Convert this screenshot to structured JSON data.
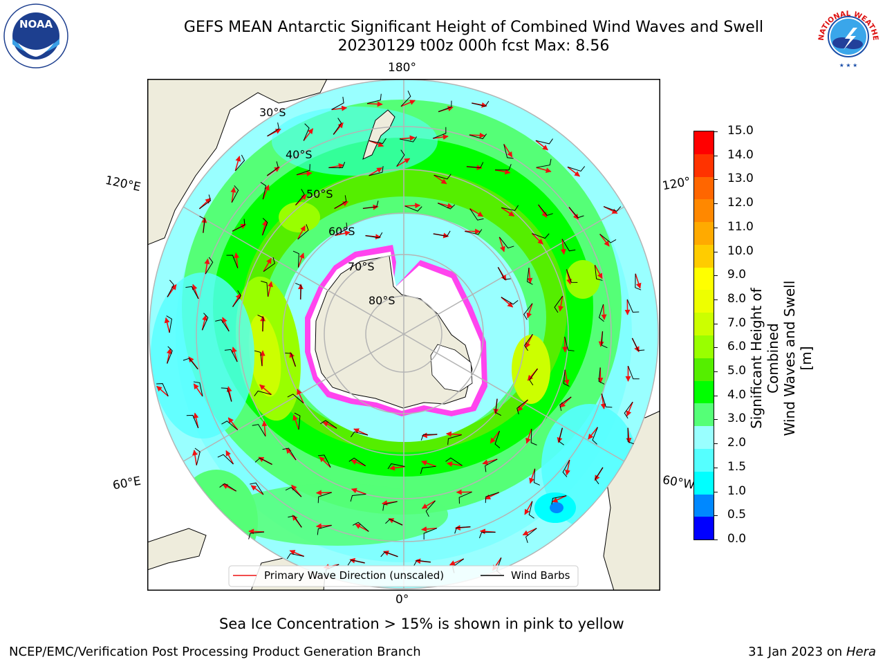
{
  "header": {
    "title_line1": "GEFS MEAN Antarctic Significant Height of Combined Wind Waves and Swell",
    "title_line2": "20230129 t00z 000h fcst   Max: 8.56"
  },
  "logos": {
    "noaa_text": "NOAA",
    "nws_text": "NATIONAL WEATHER SERVICE"
  },
  "map": {
    "longitude_labels": {
      "top": "180°",
      "bottom": "0°",
      "left_upper": "120°E",
      "left_lower": "60°E",
      "right_upper": "120°",
      "right_lower": "60°W"
    },
    "latitude_labels": [
      "30°S",
      "40°S",
      "50°S",
      "60°S",
      "70°S",
      "80°S"
    ],
    "legend": {
      "wave_label": "Primary Wave Direction (unscaled)",
      "barb_label": "Wind Barbs"
    },
    "colors": {
      "land": "#eeecdc",
      "ice": "#ff44ee",
      "wave_arrow": "#ee1111",
      "barb": "#000000",
      "grid": "#b4b4b4"
    }
  },
  "colorbar": {
    "label_line1": "Significant Height of Combined",
    "label_line2": "Wind Waves and Swell [m]",
    "ticks": [
      "15.0",
      "14.0",
      "13.0",
      "12.0",
      "11.0",
      "10.0",
      "9.0",
      "8.0",
      "7.0",
      "6.0",
      "5.0",
      "4.0",
      "3.0",
      "2.0",
      "1.5",
      "1.0",
      "0.5",
      "0.0"
    ],
    "colors_top_to_bottom": [
      "#ff0000",
      "#ff3300",
      "#ff6600",
      "#ff8800",
      "#ffaa00",
      "#ffcc00",
      "#ffff00",
      "#eeff00",
      "#ccff00",
      "#99ff00",
      "#55ee00",
      "#00ff00",
      "#55ff77",
      "#99ffff",
      "#55ffff",
      "#00ffff",
      "#0088ff",
      "#0000ff"
    ]
  },
  "notes": {
    "sea_ice": "Sea Ice Concentration > 15% is shown in pink to yellow"
  },
  "footer": {
    "left": "NCEP/EMC/Verification Post Processing Product Generation Branch",
    "right_prefix": "31 Jan 2023 on ",
    "right_italic": "Hera"
  }
}
